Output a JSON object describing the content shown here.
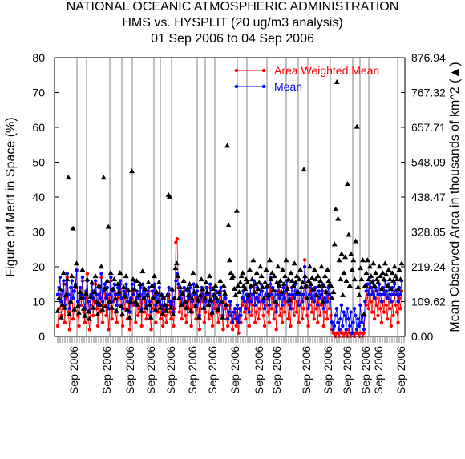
{
  "header": {
    "title_line1": "NATIONAL OCEANIC ATMOSPHERIC ADMINISTRATION",
    "title_line2": "HMS vs. HYSPLIT (20 ug/m3 analysis)",
    "title_line3": "01 Sep 2006 to 04 Sep 2006"
  },
  "colors": {
    "area_weighted_mean": "#ff0000",
    "mean": "#0000ff",
    "observed_area": "#000000",
    "axis": "#000000",
    "gridline": "#808080"
  },
  "chart_data": {
    "type": "line",
    "title": "NATIONAL OCEANIC ATMOSPHERIC ADMINISTRATION",
    "subtitle": "HMS vs. HYSPLIT (20 ug/m3 analysis) | 01 Sep 2006 to 04 Sep 2006",
    "ylabel": "Figure of Merit in Space (%)",
    "y2label": "Mean Observed Area in thousands of km^2 (▲)",
    "ylim": [
      0,
      80
    ],
    "yticks": [
      "0",
      "10",
      "20",
      "30",
      "40",
      "50",
      "60",
      "70",
      "80"
    ],
    "y2lim": [
      0,
      876.94
    ],
    "y2ticks": [
      "0.00",
      "109.62",
      "219.24",
      "328.85",
      "438.47",
      "548.09",
      "657.71",
      "767.32",
      "876.94"
    ],
    "xtick_labels": [
      "Sep 2006",
      "Sep 2006",
      "Sep 2006",
      "Sep 2006",
      "Sep 2006",
      "Sep 2006",
      "Sep 2006",
      "Sep 2006",
      "Sep 2006",
      "Sep 2006",
      "Sep 2006",
      "Sep 2006",
      "Sep 2006",
      "Sep 2006",
      "Sep 2006",
      "Sep 2006"
    ],
    "legend": {
      "placement": "top-right",
      "entries": [
        "Area Weighted Mean",
        "Mean"
      ]
    },
    "grid": "vertical lines at year boundaries",
    "series": [
      {
        "name": "Area Weighted Mean",
        "marker": "circle",
        "values": [
          3,
          8,
          12,
          6,
          9,
          15,
          4,
          11,
          17,
          7,
          2,
          10,
          13,
          5,
          8,
          14,
          19,
          6,
          3,
          12,
          9,
          16,
          7,
          4,
          11,
          18,
          5,
          2,
          9,
          13,
          6,
          10,
          15,
          8,
          3,
          12,
          7,
          17,
          4,
          9,
          14,
          6,
          11,
          2,
          8,
          16,
          5,
          10,
          13,
          7,
          4,
          12,
          9,
          15,
          6,
          3,
          11,
          8,
          14,
          5,
          10,
          2,
          7,
          13,
          9,
          16,
          4,
          11,
          6,
          8,
          12,
          3,
          15,
          7,
          10,
          5,
          9,
          13,
          6,
          2,
          11,
          8,
          14,
          4,
          10,
          7,
          12,
          5,
          9,
          3,
          8,
          6,
          4,
          9,
          12,
          7,
          5,
          10,
          3,
          8,
          27,
          28,
          14,
          7,
          11,
          5,
          9,
          13,
          6,
          4,
          10,
          8,
          12,
          3,
          7,
          15,
          9,
          5,
          11,
          6,
          2,
          8,
          13,
          10,
          4,
          7,
          12,
          9,
          5,
          14,
          6,
          3,
          10,
          8,
          11,
          7,
          4,
          9,
          13,
          6,
          2,
          11,
          8,
          5,
          3,
          6,
          9,
          4,
          2,
          5,
          7,
          3,
          8,
          1,
          6,
          4,
          9,
          11,
          7,
          5,
          10,
          8,
          3,
          12,
          6,
          9,
          14,
          4,
          7,
          11,
          5,
          8,
          13,
          10,
          6,
          3,
          9,
          12,
          7,
          4,
          15,
          8,
          11,
          5,
          10,
          2,
          9,
          13,
          6,
          8,
          4,
          12,
          7,
          10,
          14,
          5,
          9,
          3,
          11,
          8,
          6,
          13,
          7,
          10,
          4,
          9,
          12,
          5,
          8,
          22,
          11,
          6,
          3,
          9,
          14,
          7,
          10,
          5,
          12,
          8,
          4,
          11,
          6,
          9,
          13,
          3,
          7,
          10,
          5,
          12,
          8,
          6,
          2,
          1,
          1,
          0,
          1,
          1,
          0,
          2,
          1,
          1,
          0,
          1,
          1,
          0,
          2,
          1,
          0,
          1,
          1,
          0,
          1,
          1,
          1,
          0,
          1,
          1,
          0,
          1,
          6,
          9,
          12,
          8,
          14,
          10,
          7,
          13,
          5,
          11,
          9,
          6,
          12,
          8,
          4,
          10,
          7,
          13,
          9,
          5,
          11,
          8,
          3,
          10,
          6,
          12,
          9,
          7,
          4,
          11,
          8,
          13
        ],
        "values_note": "daily FMS values (percent)"
      },
      {
        "name": "Mean",
        "marker": "circle",
        "values": [
          12,
          14,
          17,
          10,
          13,
          16,
          9,
          15,
          18,
          12,
          8,
          14,
          16,
          11,
          13,
          15,
          19,
          10,
          9,
          14,
          12,
          17,
          11,
          8,
          13,
          16,
          10,
          7,
          12,
          15,
          11,
          13,
          16,
          12,
          9,
          14,
          11,
          18,
          10,
          13,
          15,
          11,
          14,
          8,
          12,
          17,
          10,
          13,
          15,
          12,
          9,
          14,
          12,
          16,
          11,
          8,
          13,
          12,
          15,
          10,
          13,
          7,
          11,
          15,
          12,
          16,
          9,
          13,
          11,
          12,
          14,
          8,
          15,
          11,
          13,
          9,
          12,
          14,
          10,
          7,
          13,
          11,
          15,
          9,
          12,
          10,
          14,
          9,
          12,
          7,
          11,
          9,
          8,
          12,
          14,
          10,
          9,
          13,
          7,
          11,
          16,
          18,
          15,
          11,
          13,
          9,
          12,
          14,
          10,
          8,
          13,
          11,
          14,
          7,
          10,
          15,
          12,
          9,
          13,
          10,
          6,
          11,
          14,
          12,
          8,
          10,
          14,
          12,
          9,
          15,
          10,
          7,
          12,
          11,
          13,
          10,
          8,
          12,
          14,
          10,
          6,
          13,
          11,
          9,
          5,
          7,
          10,
          6,
          4,
          7,
          8,
          5,
          9,
          4,
          8,
          6,
          11,
          13,
          10,
          8,
          12,
          11,
          7,
          14,
          10,
          12,
          16,
          9,
          11,
          14,
          10,
          12,
          15,
          13,
          10,
          8,
          12,
          14,
          11,
          9,
          17,
          12,
          14,
          10,
          13,
          7,
          12,
          15,
          11,
          12,
          9,
          14,
          11,
          13,
          16,
          10,
          12,
          8,
          14,
          12,
          11,
          15,
          12,
          13,
          9,
          12,
          14,
          10,
          12,
          20,
          14,
          11,
          8,
          12,
          15,
          11,
          13,
          10,
          14,
          12,
          9,
          13,
          11,
          12,
          15,
          8,
          11,
          13,
          10,
          14,
          12,
          11,
          4,
          2,
          3,
          6,
          8,
          4,
          2,
          5,
          9,
          3,
          7,
          6,
          2,
          8,
          5,
          3,
          7,
          1,
          4,
          8,
          6,
          2,
          5,
          3,
          9,
          4,
          6,
          2,
          10,
          13,
          15,
          12,
          17,
          14,
          12,
          16,
          11,
          14,
          13,
          12,
          15,
          12,
          10,
          14,
          12,
          16,
          13,
          11,
          15,
          12,
          10,
          14,
          12,
          15,
          13,
          12,
          10,
          14,
          12,
          16
        ],
        "values_note": "daily FMS values (percent)"
      },
      {
        "name": "Mean Observed Area",
        "marker": "triangle",
        "axis": "y2",
        "values": [
          80,
          120,
          150,
          60,
          100,
          200,
          90,
          130,
          180,
          500,
          70,
          110,
          190,
          340,
          85,
          160,
          230,
          95,
          75,
          140,
          120,
          210,
          88,
          65,
          135,
          180,
          78,
          55,
          125,
          170,
          90,
          140,
          190,
          110,
          70,
          160,
          100,
          220,
          85,
          500,
          150,
          95,
          175,
          345,
          110,
          200,
          90,
          150,
          180,
          120,
          80,
          165,
          140,
          200,
          95,
          70,
          155,
          125,
          190,
          85,
          145,
          60,
          110,
          520,
          180,
          150,
          110,
          175,
          100,
          130,
          165,
          80,
          205,
          120,
          150,
          90,
          130,
          170,
          100,
          60,
          160,
          120,
          190,
          85,
          140,
          110,
          170,
          90,
          130,
          70,
          120,
          100,
          80,
          130,
          445,
          440,
          90,
          150,
          70,
          120,
          215,
          230,
          190,
          120,
          155,
          100,
          135,
          175,
          110,
          90,
          150,
          130,
          165,
          80,
          120,
          200,
          140,
          95,
          160,
          115,
          60,
          130,
          180,
          150,
          90,
          120,
          170,
          140,
          100,
          190,
          115,
          75,
          150,
          130,
          160,
          120,
          85,
          140,
          175,
          110,
          60,
          160,
          135,
          100,
          600,
          350,
          240,
          200,
          185,
          190,
          150,
          130,
          395,
          160,
          140,
          170,
          190,
          200,
          160,
          150,
          180,
          170,
          130,
          210,
          160,
          180,
          240,
          140,
          165,
          200,
          150,
          170,
          220,
          190,
          155,
          120,
          170,
          210,
          160,
          130,
          240,
          180,
          200,
          145,
          190,
          110,
          170,
          220,
          160,
          175,
          140,
          210,
          165,
          190,
          240,
          150,
          180,
          115,
          200,
          175,
          160,
          230,
          170,
          190,
          140,
          180,
          210,
          155,
          170,
          525,
          190,
          160,
          120,
          175,
          220,
          165,
          185,
          150,
          210,
          180,
          130,
          190,
          160,
          175,
          220,
          110,
          160,
          190,
          140,
          210,
          175,
          165,
          160,
          120,
          140,
          290,
          400,
          800,
          370,
          240,
          180,
          260,
          130,
          200,
          250,
          175,
          480,
          320,
          160,
          260,
          210,
          240,
          180,
          300,
          660,
          155,
          130,
          215,
          180,
          240,
          70,
          160,
          200,
          240,
          180,
          220,
          190,
          170,
          230,
          160,
          200,
          180,
          170,
          220,
          190,
          150,
          200,
          180,
          230,
          195,
          160,
          210,
          180,
          150,
          200,
          175,
          220,
          190,
          180,
          150,
          210,
          180,
          230
        ]
      }
    ]
  }
}
